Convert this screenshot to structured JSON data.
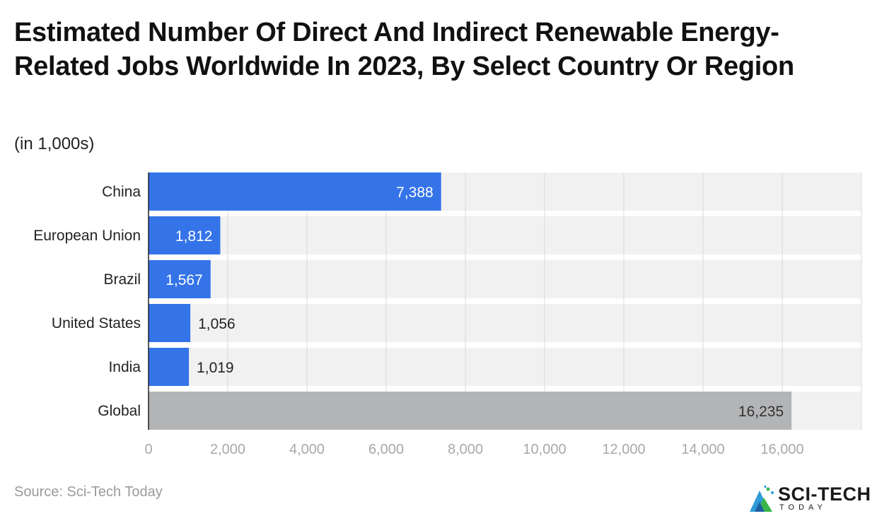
{
  "title": "Estimated Number Of Direct And Indirect Renewable Energy-Related Jobs Worldwide In 2023, By Select Country Or Region",
  "subtitle": "(in 1,000s)",
  "source": "Source: Sci-Tech Today",
  "logo": {
    "text": "SCI-TECH",
    "subtext": "TODAY",
    "icon": "sci-tech-mountain-icon"
  },
  "colors": {
    "bar_primary": "#3574e8",
    "bar_global": "#b3b4b6",
    "row_background": "#f1f1f1",
    "gridline": "#d9d9d9"
  },
  "chart_data": {
    "type": "bar",
    "orientation": "horizontal",
    "categories": [
      "China",
      "European Union",
      "Brazil",
      "United States",
      "India",
      "Global"
    ],
    "values": [
      7388,
      1812,
      1567,
      1056,
      1019,
      16235
    ],
    "value_labels": [
      "7,388",
      "1,812",
      "1,567",
      "1,056",
      "1,019",
      "16,235"
    ],
    "highlight_category": "Global",
    "xlim": [
      0,
      18000
    ],
    "xticks": [
      0,
      2000,
      4000,
      6000,
      8000,
      10000,
      12000,
      14000,
      16000
    ],
    "xtick_labels": [
      "0",
      "2,000",
      "4,000",
      "6,000",
      "8,000",
      "10,000",
      "12,000",
      "14,000",
      "16,000"
    ],
    "grid": true,
    "legend": "none",
    "xlabel": "",
    "ylabel": ""
  }
}
